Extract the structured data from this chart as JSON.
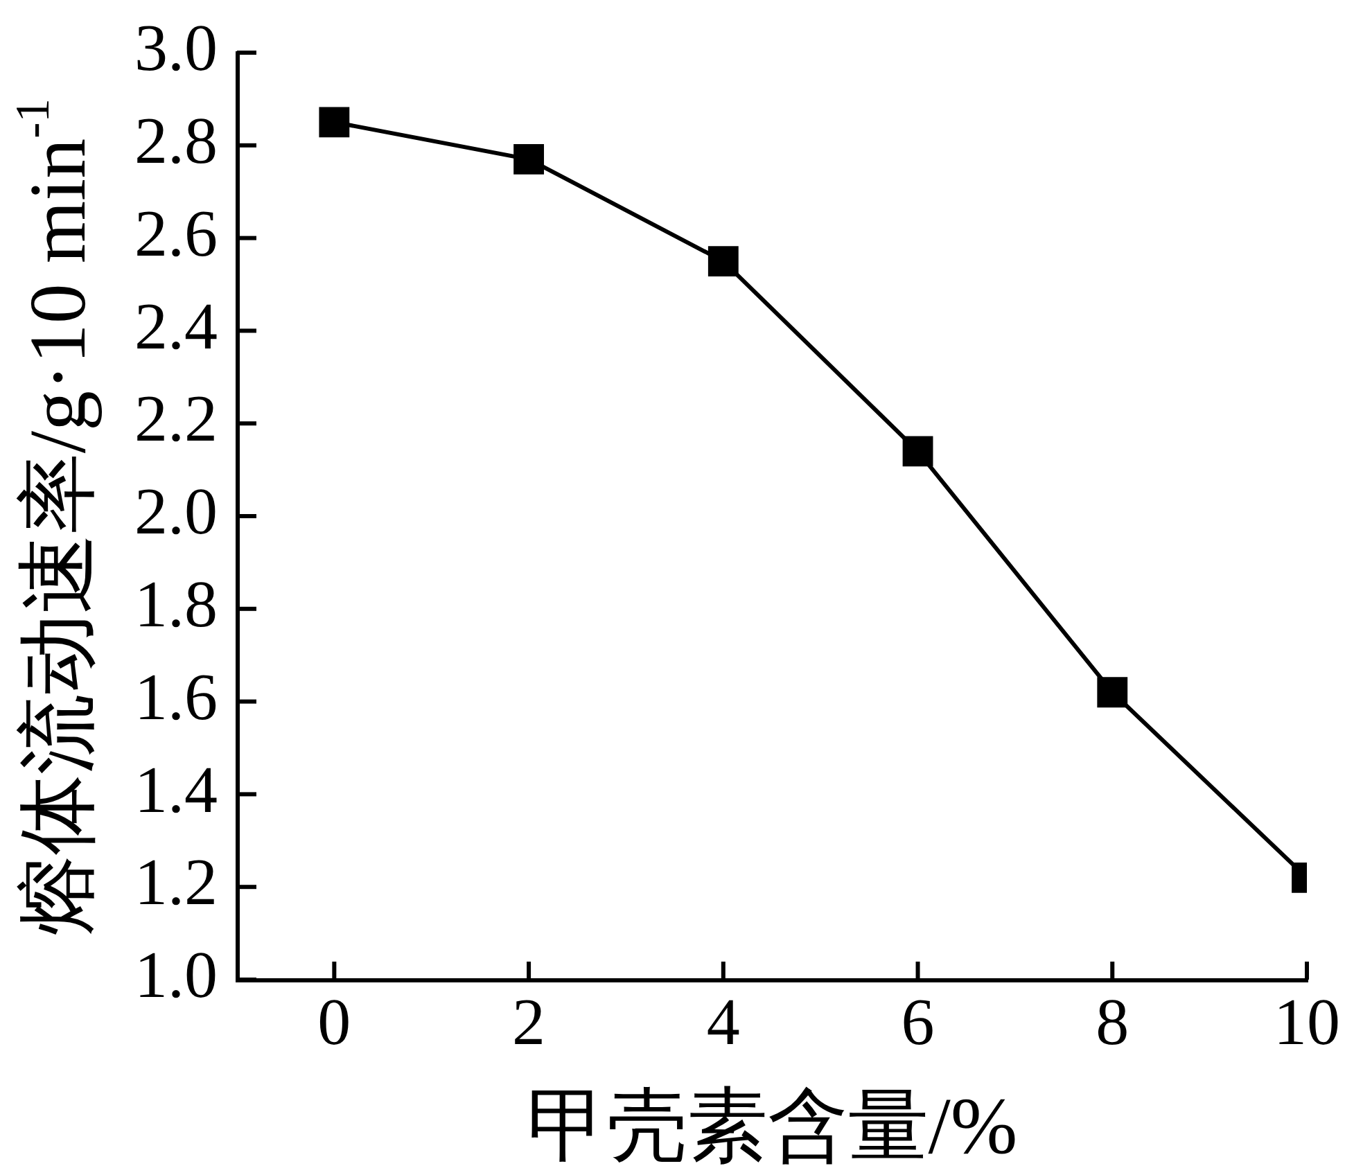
{
  "chart_data": {
    "type": "line",
    "xlabel": "甲壳素含量/%",
    "ylabel": "熔体流动速率/g·10 min$^{-1}$",
    "x": [
      0,
      2,
      4,
      6,
      8,
      10
    ],
    "series": [
      {
        "color": "#000000",
        "values": [
          2.85,
          2.77,
          2.55,
          2.14,
          1.62,
          1.22
        ]
      }
    ],
    "xlim": [
      -1,
      10
    ],
    "xticks": [
      0,
      2,
      4,
      6,
      8,
      10
    ],
    "ylim": [
      1,
      3
    ],
    "yticks": [
      {
        "value": 1,
        "label": "1.0"
      },
      1.2,
      1.4,
      1.6,
      1.8,
      {
        "value": 2,
        "label": "2.0"
      },
      2.2,
      2.4,
      2.6,
      2.8,
      {
        "value": 3,
        "label": "3.0"
      }
    ],
    "marker": "square",
    "line_style": "solid"
  }
}
